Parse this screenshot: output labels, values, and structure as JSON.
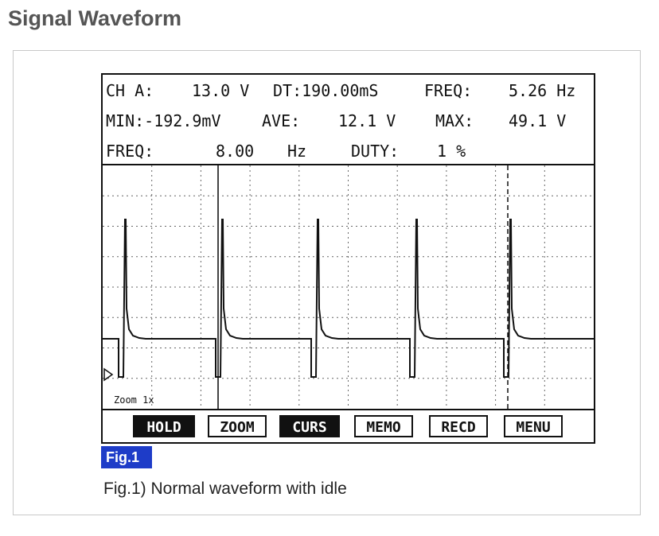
{
  "page": {
    "title": "Signal Waveform",
    "figure_badge": "Fig.1",
    "caption": "Fig.1) Normal waveform with idle"
  },
  "scope": {
    "readout": {
      "row1": {
        "ch_label": "CH A:",
        "ch_value": "13.0 V",
        "dt": "DT:190.00mS",
        "freq_label": "FREQ:",
        "freq_value": "5.26 Hz"
      },
      "row2": {
        "min": "MIN:-192.9mV",
        "ave_label": "AVE:",
        "ave_value": "12.1 V",
        "max_label": "MAX:",
        "max_value": "49.1 V"
      },
      "row3": {
        "freq_label": "FREQ:",
        "freq_value": "8.00",
        "freq_unit": "Hz",
        "duty_label": "DUTY:",
        "duty_value": "1 %"
      }
    },
    "zoom_label": "Zoom 1x",
    "softkeys": [
      {
        "label": "HOLD",
        "active": true
      },
      {
        "label": "ZOOM",
        "active": false
      },
      {
        "label": "CURS",
        "active": true
      },
      {
        "label": "MEMO",
        "active": false
      },
      {
        "label": "RECD",
        "active": false
      },
      {
        "label": "MENU",
        "active": false
      }
    ],
    "trace_color": "#111111"
  }
}
